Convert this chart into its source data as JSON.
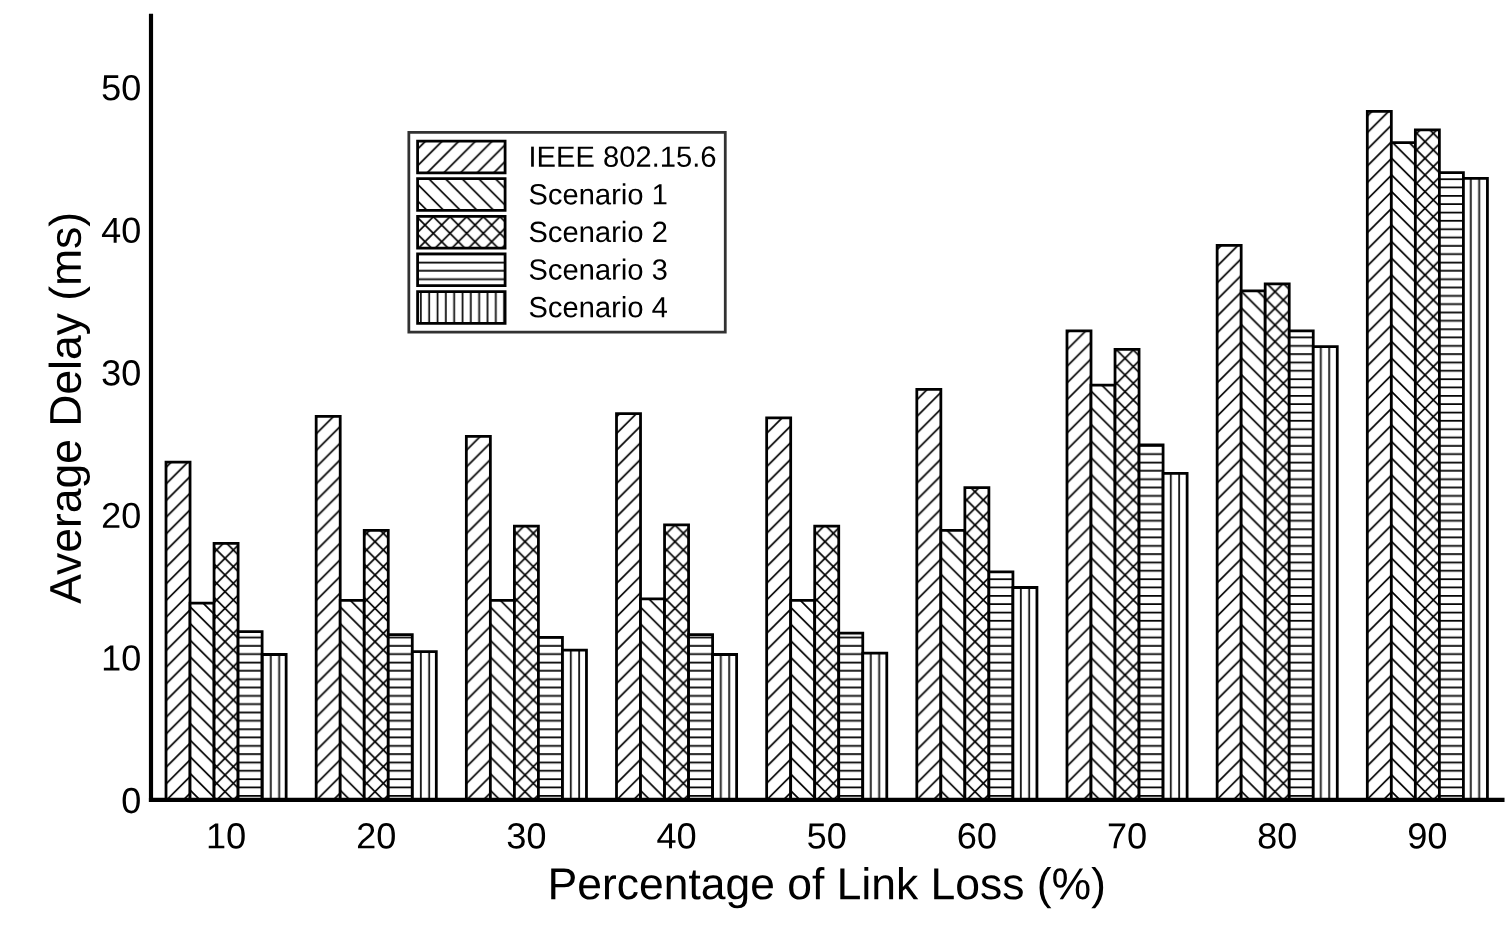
{
  "chart_data": {
    "type": "bar",
    "xlabel": "Percentage of Link Loss (%)",
    "ylabel": "Average Delay (ms)",
    "categories": [
      "10",
      "20",
      "30",
      "40",
      "50",
      "60",
      "70",
      "80",
      "90"
    ],
    "series": [
      {
        "name": "IEEE 802.15.6",
        "color": "#000000",
        "values": [
          23.7,
          26.9,
          25.5,
          27.1,
          26.8,
          28.8,
          32.9,
          38.9,
          48.3
        ]
      },
      {
        "name": "Scenario 1",
        "color": "#000000",
        "values": [
          13.8,
          14.0,
          14.0,
          14.1,
          14.0,
          18.9,
          29.1,
          35.7,
          46.1
        ]
      },
      {
        "name": "Scenario 2",
        "color": "#000000",
        "values": [
          18.0,
          18.9,
          19.2,
          19.3,
          19.2,
          21.9,
          31.6,
          36.2,
          47.0
        ]
      },
      {
        "name": "Scenario 3",
        "color": "#000000",
        "values": [
          11.8,
          11.6,
          11.4,
          11.6,
          11.7,
          16.0,
          24.9,
          32.9,
          44.0
        ]
      },
      {
        "name": "Scenario 4",
        "color": "#000000",
        "values": [
          10.2,
          10.4,
          10.5,
          10.2,
          10.3,
          14.9,
          22.9,
          31.8,
          43.6
        ]
      }
    ],
    "ylim": [
      0,
      55
    ],
    "yticks": [
      0,
      10,
      20,
      30,
      40,
      50
    ],
    "grid": false,
    "legend": "top left"
  }
}
